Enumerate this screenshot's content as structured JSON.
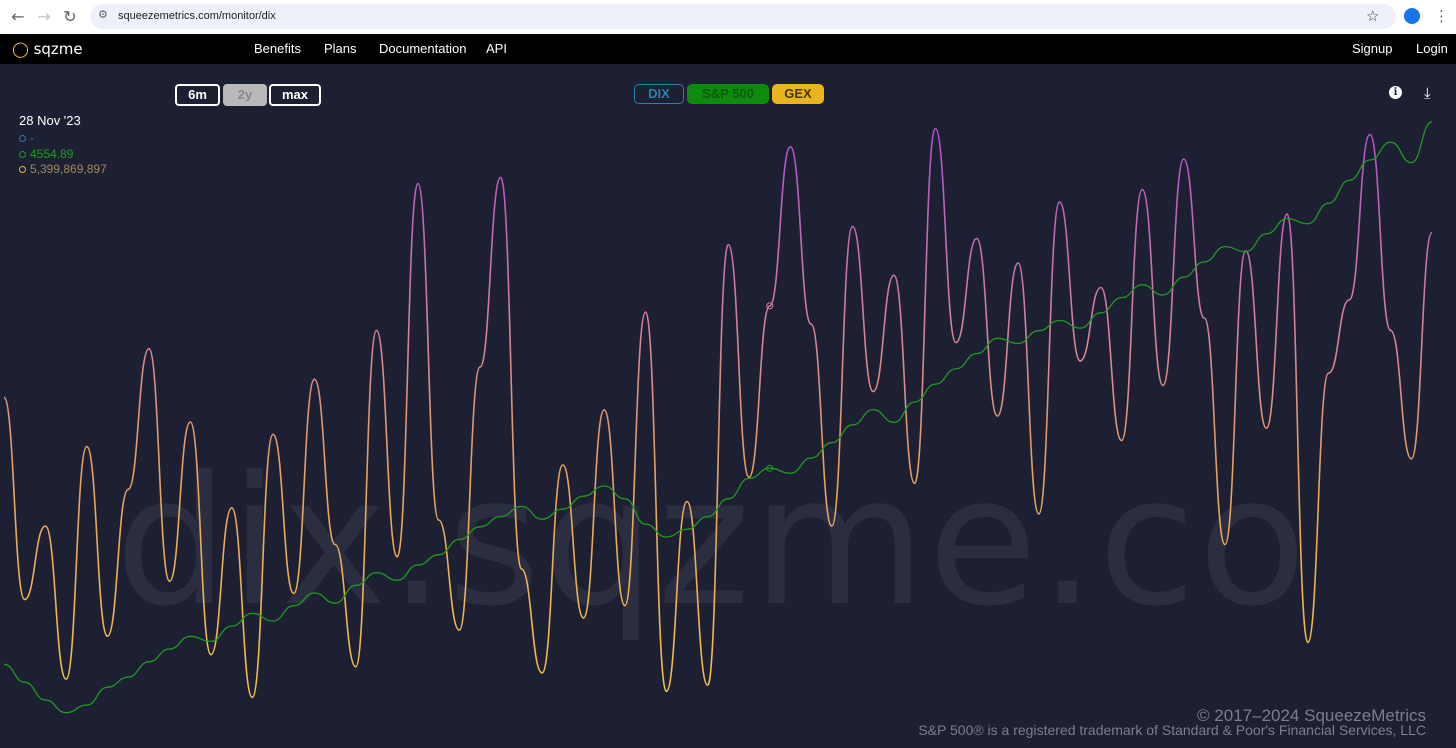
{
  "browser": {
    "url": "squeezemetrics.com/monitor/dix"
  },
  "header": {
    "logo_text": "sqzme",
    "nav": [
      "Benefits",
      "Plans",
      "Documentation",
      "API"
    ],
    "signup": "Signup",
    "login": "Login"
  },
  "controls": {
    "ranges": [
      {
        "label": "6m",
        "active": false
      },
      {
        "label": "2y",
        "active": true
      },
      {
        "label": "max",
        "active": false
      }
    ],
    "series_toggles": [
      {
        "label": "DIX",
        "color": "#2b7ea8"
      },
      {
        "label": "S&P 500",
        "color": "#0e8a0e"
      },
      {
        "label": "GEX",
        "color": "#e8b420"
      }
    ]
  },
  "readout": {
    "date": "28 Nov '23",
    "dix": "-",
    "spx": "4554.89",
    "gex": "5,399,869,897"
  },
  "watermark": "dix.sqzme.co",
  "footer": {
    "copyright": "© 2017–2024 SqueezeMetrics",
    "trademark": "S&P 500® is a registered trademark of Standard & Poor's Financial Services, LLC"
  },
  "chart_data": {
    "type": "line",
    "range": "2y",
    "series": [
      {
        "name": "S&P 500",
        "color": "#1e9b1e",
        "values": [
          3950,
          3880,
          3810,
          3760,
          3790,
          3860,
          3900,
          3960,
          4010,
          4060,
          4040,
          4100,
          4150,
          4120,
          4180,
          4230,
          4190,
          4260,
          4310,
          4280,
          4340,
          4380,
          4440,
          4490,
          4530,
          4570,
          4520,
          4560,
          4610,
          4650,
          4600,
          4500,
          4450,
          4480,
          4530,
          4600,
          4680,
          4720,
          4700,
          4760,
          4820,
          4890,
          4950,
          4900,
          4980,
          5050,
          5110,
          5170,
          5230,
          5210,
          5260,
          5300,
          5270,
          5330,
          5390,
          5440,
          5400,
          5470,
          5530,
          5590,
          5570,
          5640,
          5700,
          5680,
          5760,
          5850,
          5930,
          6000,
          5920,
          6080
        ]
      },
      {
        "name": "GEX",
        "color_low": "#f5c042",
        "color_high": "#b04fd0",
        "values": [
          5.4,
          2.1,
          3.3,
          0.8,
          4.6,
          1.5,
          3.9,
          6.2,
          2.4,
          5.0,
          1.2,
          3.6,
          0.5,
          4.8,
          2.2,
          5.7,
          3.0,
          1.0,
          6.5,
          2.8,
          8.9,
          3.4,
          1.6,
          5.9,
          9.0,
          2.6,
          0.9,
          4.3,
          1.8,
          5.2,
          2.0,
          6.8,
          0.6,
          3.7,
          0.7,
          7.9,
          4.1,
          6.9,
          9.5,
          6.6,
          3.3,
          8.2,
          5.5,
          7.4,
          4.0,
          9.8,
          6.3,
          8.0,
          5.1,
          7.6,
          3.5,
          8.6,
          6.0,
          7.2,
          4.7,
          8.8,
          5.6,
          9.3,
          6.7,
          3.0,
          7.8,
          4.9,
          8.4,
          1.4,
          5.8,
          7.0,
          9.7,
          6.5,
          4.4,
          8.1
        ]
      }
    ],
    "grid": false,
    "legend": "top-center"
  }
}
